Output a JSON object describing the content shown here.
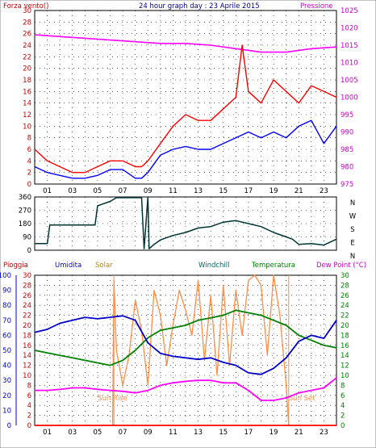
{
  "chart_data": [
    {
      "type": "line",
      "title": "24 hour graph day : 23 Aprile 2015",
      "y_left_label": "Forza vento()",
      "y_right_label": "Pressione",
      "x_ticks": [
        "01",
        "03",
        "05",
        "07",
        "09",
        "11",
        "13",
        "15",
        "17",
        "19",
        "21",
        "23"
      ],
      "xlim": [
        0,
        24
      ],
      "ylim_left": [
        0,
        30
      ],
      "y_left_ticks": [
        "0",
        "2",
        "4",
        "6",
        "8",
        "10",
        "12",
        "14",
        "16",
        "18",
        "20",
        "22",
        "24",
        "26",
        "28",
        "30"
      ],
      "ylim_right": [
        975,
        1025
      ],
      "y_right_ticks": [
        "975",
        "980",
        "985",
        "990",
        "995",
        "1000",
        "1005",
        "1010",
        "1015",
        "1020",
        "1025"
      ],
      "grid": true,
      "series": [
        {
          "key": "pressure",
          "color": "#ff00ff",
          "axis": "right",
          "x": [
            0,
            2,
            4,
            6,
            8,
            10,
            12,
            14,
            16,
            18,
            20,
            22,
            24
          ],
          "y": [
            1018,
            1017.5,
            1017,
            1016.5,
            1016,
            1015.5,
            1015.5,
            1015,
            1014,
            1013,
            1013,
            1014,
            1014.5
          ]
        },
        {
          "key": "gust",
          "color": "#ff0000",
          "axis": "left",
          "x": [
            0,
            1,
            2,
            3,
            4,
            5,
            6,
            7,
            8,
            8.5,
            9,
            10,
            11,
            12,
            13,
            14,
            15,
            16,
            16.5,
            17,
            18,
            19,
            20,
            21,
            22,
            23,
            24
          ],
          "y": [
            6,
            4,
            3,
            2,
            2,
            3,
            4,
            4,
            3,
            3,
            4,
            7,
            10,
            12,
            11,
            11,
            13,
            15,
            24,
            16,
            14,
            18,
            16,
            14,
            17,
            16,
            15
          ]
        },
        {
          "key": "wind",
          "color": "#0000ff",
          "axis": "left",
          "x": [
            0,
            1,
            2,
            3,
            4,
            5,
            6,
            7,
            8,
            8.5,
            9,
            10,
            11,
            12,
            13,
            14,
            15,
            16,
            17,
            18,
            19,
            20,
            21,
            22,
            23,
            24
          ],
          "y": [
            3,
            2,
            1.5,
            1,
            1,
            1.5,
            2.5,
            2.5,
            1,
            1,
            2,
            5,
            6,
            6.5,
            6,
            6,
            7,
            8,
            9,
            8,
            9,
            8,
            10,
            11,
            7,
            10
          ]
        }
      ]
    },
    {
      "type": "line",
      "title": "",
      "y_right_label": "N W S E N",
      "y_right_letters": [
        "N",
        "W",
        "S",
        "E",
        "N"
      ],
      "xlim": [
        0,
        24
      ],
      "ylim": [
        0,
        360
      ],
      "y_ticks": [
        "0",
        "90",
        "180",
        "270",
        "360"
      ],
      "grid": true,
      "series": [
        {
          "key": "direction",
          "color": "#003333",
          "x": [
            0,
            1,
            1.2,
            4.8,
            5,
            6,
            6.5,
            8.5,
            8.7,
            9,
            9.1,
            9.5,
            10,
            11,
            12,
            13,
            14,
            15,
            16,
            17,
            18,
            19,
            20,
            20.5,
            21,
            22,
            23,
            24
          ],
          "y": [
            45,
            45,
            170,
            170,
            300,
            330,
            355,
            355,
            10,
            360,
            10,
            40,
            70,
            100,
            120,
            150,
            160,
            190,
            200,
            180,
            160,
            120,
            90,
            75,
            40,
            45,
            35,
            75
          ]
        }
      ]
    },
    {
      "type": "line",
      "title": "",
      "legend": [
        "Pioggia",
        "Umidita",
        "Solar",
        "Windchill",
        "Temperatura",
        "Dew Point (°C)"
      ],
      "xlim": [
        0,
        24
      ],
      "ylim_humidity": [
        0,
        100
      ],
      "y_humidity_ticks": [
        "0",
        "10",
        "20",
        "30",
        "40",
        "50",
        "60",
        "70",
        "80",
        "90",
        "100"
      ],
      "ylim_temp": [
        0,
        30
      ],
      "y_temp_ticks": [
        "0",
        "2",
        "4",
        "6",
        "8",
        "10",
        "12",
        "14",
        "16",
        "18",
        "20",
        "22",
        "24",
        "26",
        "28",
        "30"
      ],
      "grid": true,
      "annotations": [
        {
          "text": "Sun Rise",
          "x": 6.3
        },
        {
          "text": "Sun Set",
          "x": 20.2
        }
      ],
      "series": [
        {
          "key": "humidity",
          "color": "#0000cc",
          "axis": "humidity",
          "x": [
            0,
            1,
            2,
            3,
            4,
            5,
            6,
            7,
            8,
            9,
            10,
            11,
            12,
            13,
            14,
            15,
            16,
            17,
            18,
            19,
            20,
            21,
            22,
            23,
            24
          ],
          "y": [
            62,
            64,
            68,
            70,
            72,
            71,
            72,
            73,
            70,
            55,
            48,
            46,
            45,
            44,
            45,
            42,
            40,
            35,
            34,
            38,
            45,
            56,
            60,
            58,
            70
          ]
        },
        {
          "key": "temperature",
          "color": "#008000",
          "axis": "temp",
          "x": [
            0,
            1,
            2,
            3,
            4,
            5,
            6,
            7,
            8,
            9,
            10,
            11,
            12,
            13,
            14,
            15,
            16,
            17,
            18,
            19,
            20,
            21,
            22,
            23,
            24
          ],
          "y": [
            15,
            14.5,
            14,
            13.5,
            13,
            12.5,
            12,
            13,
            15,
            17.5,
            19,
            19.5,
            20,
            21,
            21.5,
            22,
            23,
            22.5,
            22,
            21,
            20,
            18,
            17,
            16,
            15.5
          ]
        },
        {
          "key": "dewpoint",
          "color": "#ff00ff",
          "axis": "temp",
          "x": [
            0,
            1,
            2,
            3,
            4,
            5,
            6,
            7,
            8,
            9,
            10,
            11,
            12,
            13,
            14,
            15,
            16,
            17,
            18,
            19,
            20,
            21,
            22,
            23,
            24
          ],
          "y": [
            7,
            7,
            7.2,
            7.5,
            7.5,
            7.2,
            7,
            6.8,
            6.5,
            7,
            8,
            8.5,
            8.8,
            9,
            9,
            8.5,
            8.5,
            7,
            5,
            5,
            5.5,
            6.5,
            7,
            7.5,
            9.5
          ]
        },
        {
          "key": "solar",
          "color": "#ff8c42",
          "axis": "temp",
          "x": [
            6.2,
            6.3,
            6.5,
            7,
            7.5,
            8,
            8.5,
            9,
            9.5,
            10,
            10.5,
            11,
            11.5,
            12,
            12.5,
            13,
            13.5,
            14,
            14.5,
            15,
            15.5,
            16,
            16.5,
            17,
            17.5,
            18,
            18.5,
            19,
            19.5,
            20,
            20.2
          ],
          "y": [
            0,
            29,
            15,
            8,
            14,
            25,
            19,
            8,
            27,
            22,
            12,
            20,
            27,
            23,
            18,
            29,
            13,
            26,
            10,
            28,
            12,
            27,
            18,
            29,
            30,
            28,
            14,
            30,
            22,
            8,
            0
          ]
        },
        {
          "key": "rain",
          "color": "#ff0000",
          "axis": "temp",
          "x": [
            0,
            24
          ],
          "y": [
            0,
            0
          ]
        }
      ]
    }
  ]
}
